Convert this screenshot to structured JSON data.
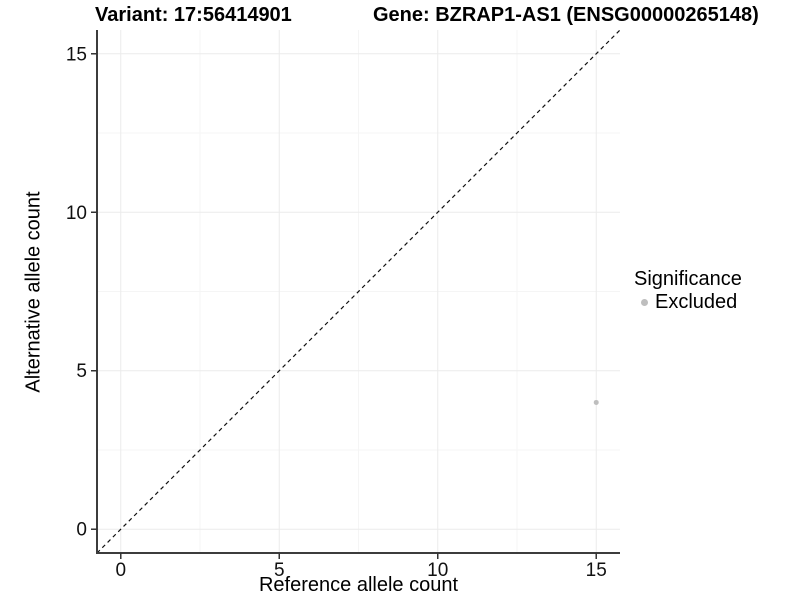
{
  "chart_data": {
    "type": "scatter",
    "title_left": "Variant: 17:56414901",
    "title_right": "Gene: BZRAP1-AS1 (ENSG00000265148)",
    "xlabel": "Reference allele count",
    "ylabel": "Alternative allele count",
    "xlim": [
      -0.75,
      15.75
    ],
    "ylim": [
      -0.75,
      15.75
    ],
    "xticks": [
      0,
      5,
      10,
      15
    ],
    "yticks": [
      0,
      5,
      10,
      15
    ],
    "xminor": [
      2.5,
      7.5,
      12.5
    ],
    "yminor": [
      2.5,
      7.5,
      12.5
    ],
    "grid": true,
    "points": [
      {
        "x": 15,
        "y": 4,
        "series": "Excluded"
      }
    ],
    "reference_line": {
      "kind": "identity",
      "style": "dashed",
      "color": "#111111"
    },
    "legend": {
      "title": "Significance",
      "position": "right",
      "items": [
        {
          "label": "Excluded",
          "color": "#bebebe"
        }
      ]
    },
    "colors": {
      "point": "#bebebe",
      "grid_major": "#ebebeb",
      "grid_minor": "#f5f5f5",
      "axis_line": "#3c3c3c",
      "tick": "#333333",
      "tick_label": "#111111"
    }
  }
}
